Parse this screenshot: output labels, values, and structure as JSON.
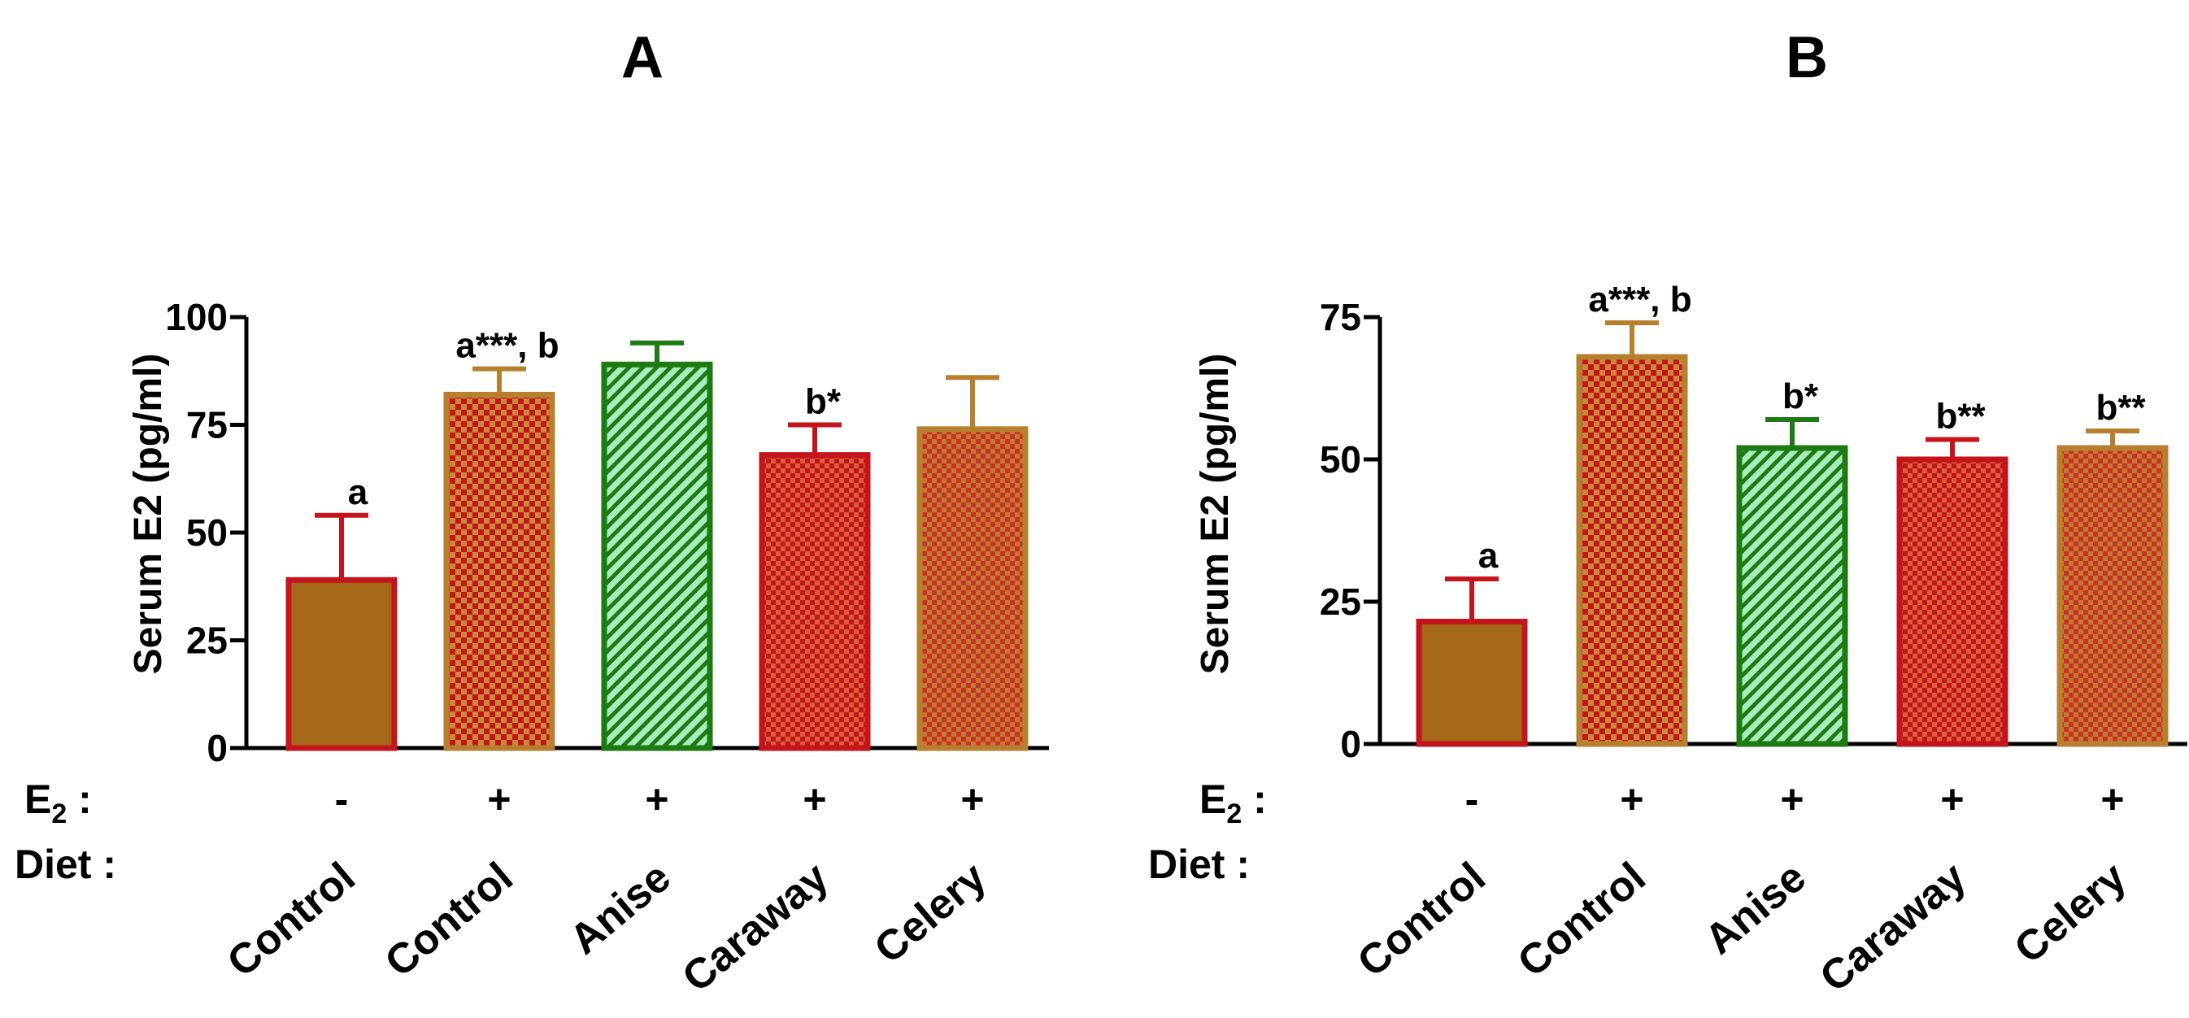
{
  "colors": {
    "brown": "#a6691a",
    "tan": "#b7802f",
    "red": "#c4151c",
    "green": "#1e7a12",
    "mint": "#a9ecbd",
    "tanFill": "#c27a2c"
  },
  "row_labels": {
    "e2_main": "E",
    "e2_sub": "2",
    "e2_colon": " :",
    "diet": "Diet :"
  },
  "chart_data": [
    {
      "type": "bar",
      "title": "A",
      "ylabel": "Serum E2 (pg/ml)",
      "xlabel": "",
      "ylim": [
        0,
        100
      ],
      "yticks": [
        0,
        25,
        50,
        75,
        100
      ],
      "categories": [
        "Control",
        "Control",
        "Anise",
        "Caraway",
        "Celery"
      ],
      "e2": [
        "-",
        "+",
        "+",
        "+",
        "+"
      ],
      "values": [
        39,
        82,
        89,
        68,
        74
      ],
      "errors": [
        15,
        6,
        5,
        7,
        12
      ],
      "annotations": [
        "a",
        "a***, b",
        "",
        "b*",
        ""
      ],
      "styles": [
        "solid-brown",
        "check-red-tan",
        "hatch-green",
        "check-red",
        "check-tan"
      ]
    },
    {
      "type": "bar",
      "title": "B",
      "ylabel": "Serum E2 (pg/ml)",
      "xlabel": "",
      "ylim": [
        0,
        75
      ],
      "yticks": [
        0,
        25,
        50,
        75
      ],
      "categories": [
        "Control",
        "Control",
        "Anise",
        "Caraway",
        "Celery"
      ],
      "e2": [
        "-",
        "+",
        "+",
        "+",
        "+"
      ],
      "values": [
        21.5,
        68,
        52,
        50,
        52
      ],
      "errors": [
        7.5,
        6,
        5,
        3.5,
        3
      ],
      "annotations": [
        "a",
        "a***, b",
        "b*",
        "b**",
        "b**"
      ],
      "styles": [
        "solid-brown",
        "check-red-tan",
        "hatch-green",
        "check-red",
        "check-tan"
      ]
    }
  ]
}
